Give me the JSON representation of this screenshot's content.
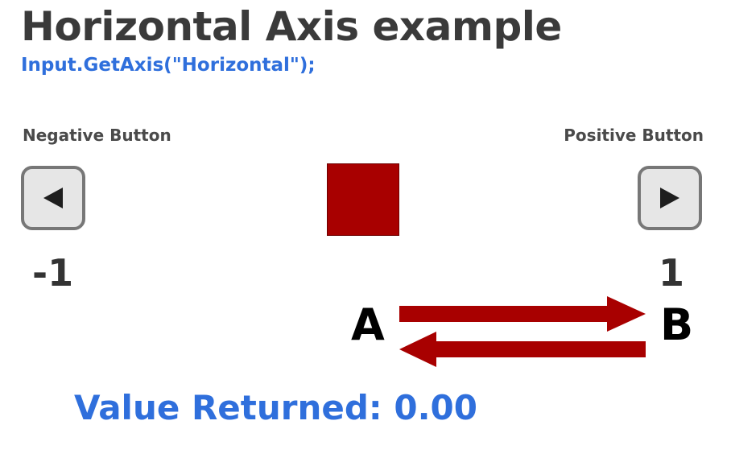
{
  "title": "Horizontal Axis example",
  "code": "Input.GetAxis(\"Horizontal\");",
  "negative": {
    "label": "Negative Button",
    "icon": "left-triangle-icon",
    "value": "-1"
  },
  "positive": {
    "label": "Positive Button",
    "icon": "right-triangle-icon",
    "value": "1"
  },
  "points": {
    "a": "A",
    "b": "B"
  },
  "result": {
    "text": "Value Returned: 0.00"
  },
  "colors": {
    "title": "#3a3a3a",
    "accent_blue": "#2f6fdc",
    "square_red": "#a80000",
    "arrow_red": "#a80000",
    "key_border": "#777777",
    "key_fill": "#e6e6e6"
  }
}
